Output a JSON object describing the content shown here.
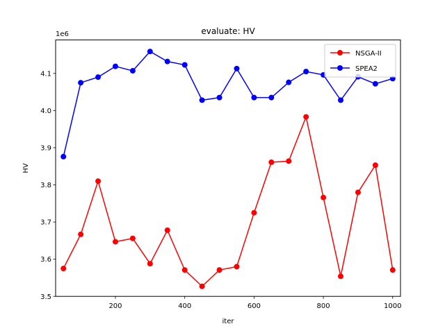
{
  "chart_data": {
    "type": "line",
    "title": "evaluate: HV",
    "xlabel": "iter",
    "ylabel": "HV",
    "y_offset_text": "1e6",
    "xlim": [
      27.5,
      1022.5
    ],
    "ylim": [
      3.5,
      4.19
    ],
    "x_ticks": [
      200,
      400,
      600,
      800,
      1000
    ],
    "x_tick_labels": [
      "200",
      "400",
      "600",
      "800",
      "1000"
    ],
    "y_ticks": [
      3.5,
      3.6,
      3.7,
      3.8,
      3.9,
      4.0,
      4.1
    ],
    "y_tick_labels": [
      "3.5",
      "3.6",
      "3.7",
      "3.8",
      "3.9",
      "4.0",
      "4.1"
    ],
    "grid": false,
    "legend_position": "top-right",
    "x": [
      50,
      100,
      150,
      200,
      250,
      300,
      350,
      400,
      450,
      500,
      550,
      600,
      650,
      700,
      750,
      800,
      850,
      900,
      950,
      1000
    ],
    "series": [
      {
        "name": "NSGA-II",
        "color": "#ff0000",
        "values": [
          3.575,
          3.667,
          3.81,
          3.647,
          3.656,
          3.588,
          3.678,
          3.571,
          3.527,
          3.571,
          3.58,
          3.725,
          3.861,
          3.864,
          3.983,
          3.766,
          3.554,
          3.78,
          3.853,
          3.571
        ]
      },
      {
        "name": "SPEA2",
        "color": "#0000ff",
        "values": [
          3.876,
          4.075,
          4.09,
          4.119,
          4.107,
          4.159,
          4.132,
          4.123,
          4.028,
          4.035,
          4.113,
          4.035,
          4.035,
          4.076,
          4.105,
          4.096,
          4.028,
          4.091,
          4.072,
          4.086
        ]
      }
    ]
  }
}
